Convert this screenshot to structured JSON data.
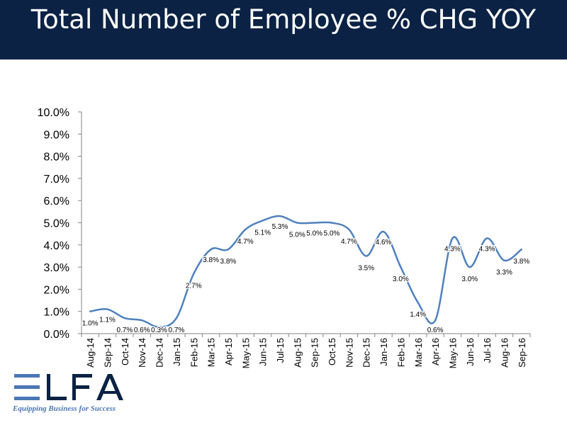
{
  "header": {
    "title": "Total Number of Employee % CHG YOY"
  },
  "brand": {
    "logo_text": "ELFA",
    "tagline": "Equipping Business for Success"
  },
  "colors": {
    "header_bg": "#0b2244",
    "line": "#4f81bd",
    "logo_blue": "#4a78b5",
    "logo_dark": "#0b2244"
  },
  "chart_data": {
    "type": "line",
    "title": "",
    "xlabel": "",
    "ylabel": "",
    "ylim": [
      0,
      10
    ],
    "y_ticks": [
      "0.0%",
      "1.0%",
      "2.0%",
      "3.0%",
      "4.0%",
      "5.0%",
      "6.0%",
      "7.0%",
      "8.0%",
      "9.0%",
      "10.0%"
    ],
    "categories": [
      "Aug-14",
      "Sep-14",
      "Oct-14",
      "Nov-14",
      "Dec-14",
      "Jan-15",
      "Feb-15",
      "Mar-15",
      "Apr-15",
      "May-15",
      "Jun-15",
      "Jul-15",
      "Aug-15",
      "Sep-15",
      "Oct-15",
      "Nov-15",
      "Dec-15",
      "Jan-16",
      "Feb-16",
      "Mar-16",
      "Apr-16",
      "May-16",
      "Jun-16",
      "Jul-16",
      "Aug-16",
      "Sep-16"
    ],
    "values": [
      1.0,
      1.1,
      0.7,
      0.6,
      0.3,
      0.7,
      2.7,
      3.8,
      3.8,
      4.7,
      5.1,
      5.3,
      5.0,
      5.0,
      5.0,
      4.7,
      3.5,
      4.6,
      3.0,
      1.4,
      0.6,
      4.3,
      3.0,
      4.3,
      3.3,
      3.8
    ],
    "data_labels": [
      "1.0%",
      "1.1%",
      "0.7%",
      "0.6%",
      "0.3%",
      "0.7%",
      "2.7%",
      "3.8%",
      "3.8%",
      "4.7%",
      "5.1%",
      "5.3%",
      "5.0%",
      "5.0%",
      "5.0%",
      "4.7%",
      "3.5%",
      "4.6%",
      "3.0%",
      "1.4%",
      "0.6%",
      "4.3%",
      "3.0%",
      "4.3%",
      "3.3%",
      "3.8%"
    ],
    "grid": false,
    "smooth": true
  }
}
